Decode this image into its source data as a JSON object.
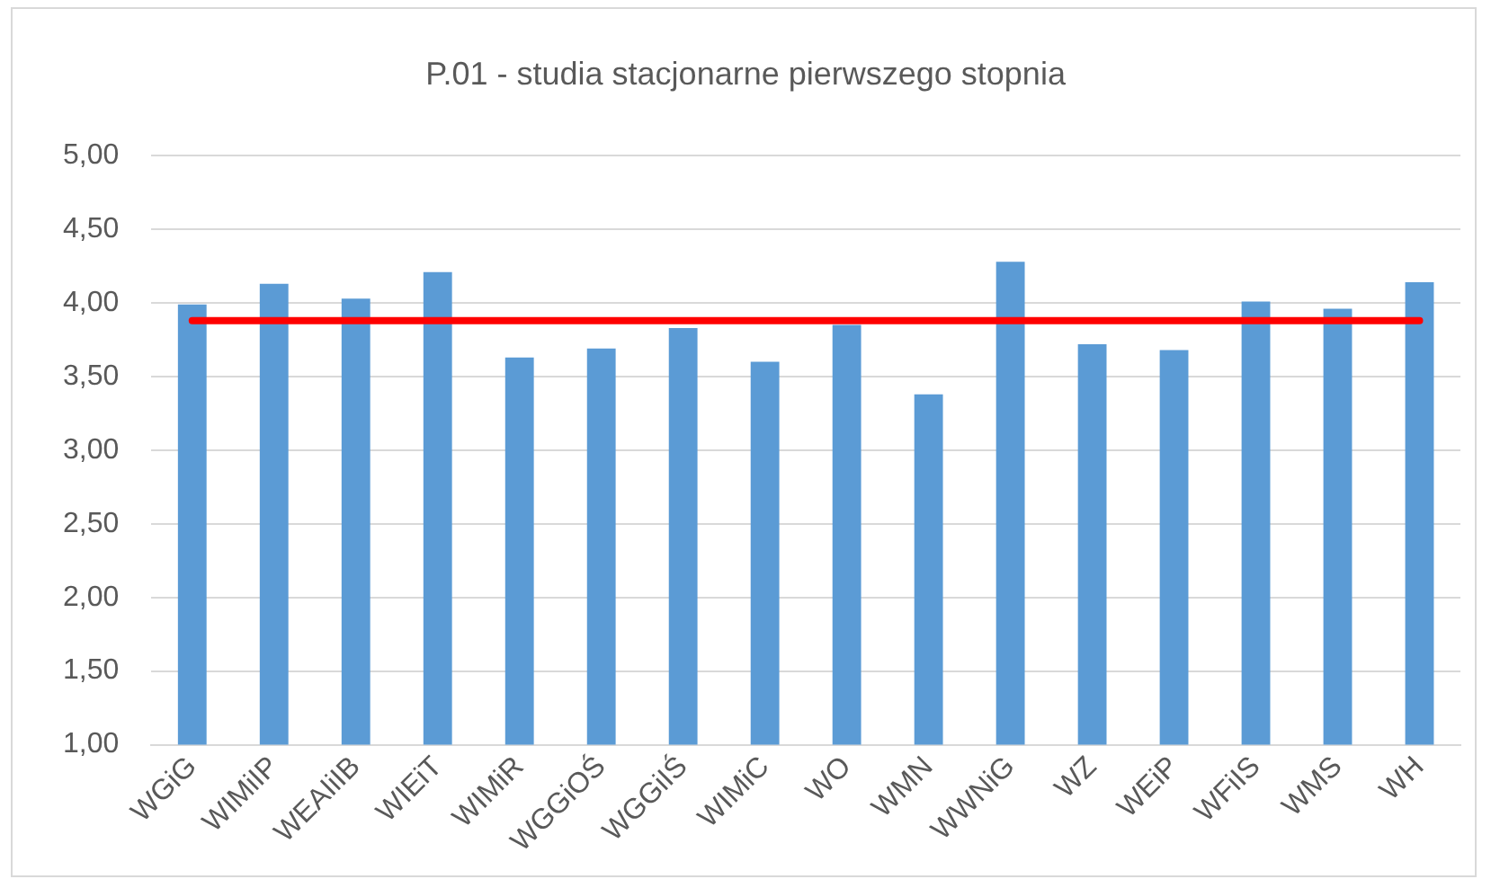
{
  "chart_data": {
    "type": "bar",
    "title": "P.01 - studia stacjonarne pierwszego stopnia",
    "categories": [
      "WGiG",
      "WIMiIP",
      "WEAIiIB",
      "WIEiT",
      "WIMiR",
      "WGGiOŚ",
      "WGGiIŚ",
      "WIMiC",
      "WO",
      "WMN",
      "WWNiG",
      "WZ",
      "WEiP",
      "WFiIS",
      "WMS",
      "WH"
    ],
    "values": [
      3.99,
      4.13,
      4.03,
      4.21,
      3.63,
      3.69,
      3.83,
      3.6,
      3.85,
      3.38,
      4.28,
      3.72,
      3.68,
      4.01,
      3.96,
      4.14
    ],
    "color": "#5b9bd5",
    "ylim": [
      1,
      5
    ],
    "yticks": [
      {
        "value": 1,
        "label": "1,00"
      },
      {
        "value": 1.5,
        "label": "1,50"
      },
      {
        "value": 2,
        "label": "2,00"
      },
      {
        "value": 2.5,
        "label": "2,50"
      },
      {
        "value": 3,
        "label": "3,00"
      },
      {
        "value": 3.5,
        "label": "3,50"
      },
      {
        "value": 4,
        "label": "4,00"
      },
      {
        "value": 4.5,
        "label": "4,50"
      },
      {
        "value": 5,
        "label": "5,00"
      }
    ],
    "grid": "y",
    "legend": false,
    "ref_lines": [
      {
        "axis": "y",
        "value": 3.88,
        "color": "#ff0000"
      }
    ]
  }
}
